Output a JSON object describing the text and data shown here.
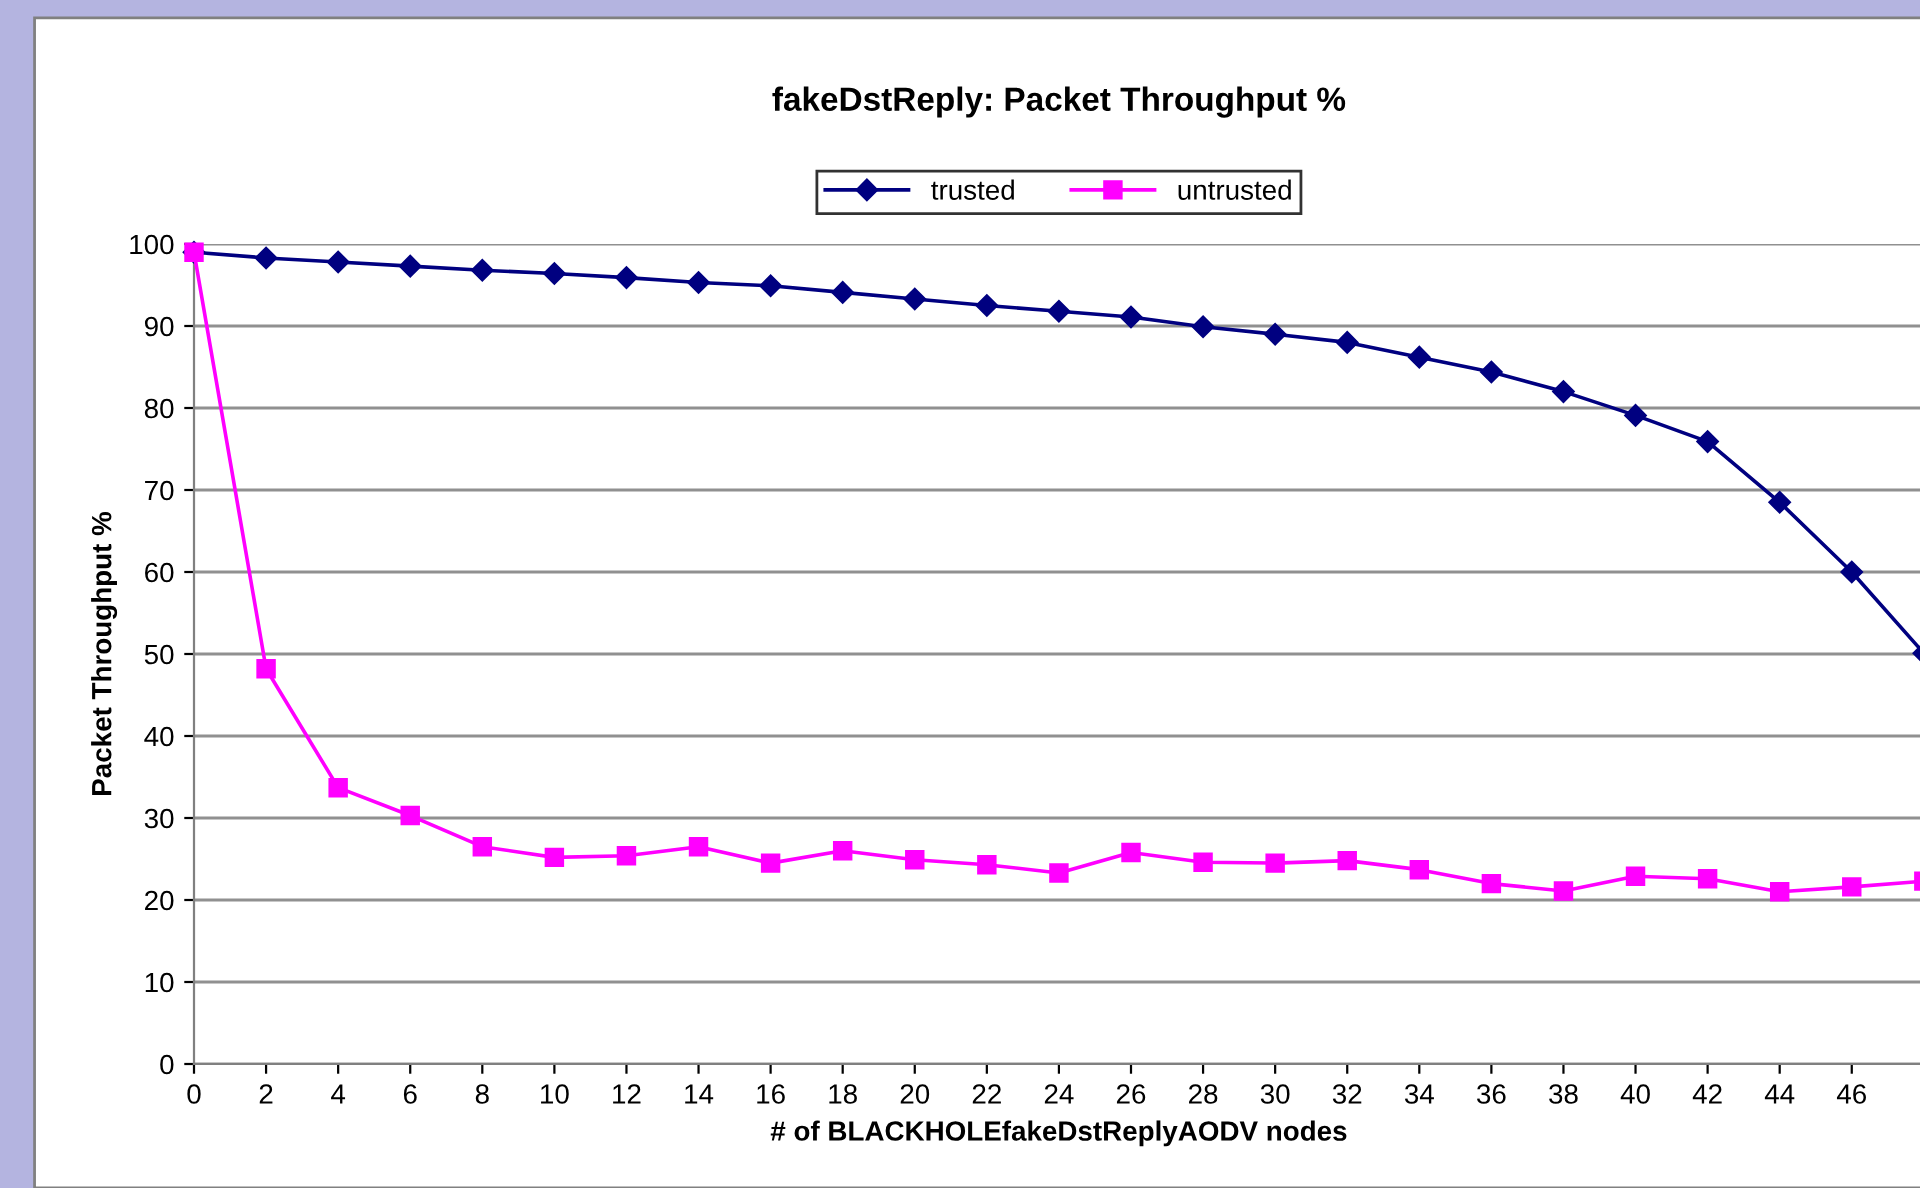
{
  "chart_data": {
    "type": "line",
    "title": "fakeDstReply: Packet Throughput %",
    "xlabel": "# of BLACKHOLEfakeDstReplyAODV nodes",
    "ylabel": "Packet Throughput %",
    "x": [
      0,
      2,
      4,
      6,
      8,
      10,
      12,
      14,
      16,
      18,
      20,
      22,
      24,
      26,
      28,
      30,
      32,
      34,
      36,
      38,
      40,
      42,
      44,
      46,
      48
    ],
    "series": [
      {
        "name": "trusted",
        "color": "#000080",
        "marker": "diamond",
        "values": [
          99,
          98.3,
          97.8,
          97.3,
          96.8,
          96.4,
          95.9,
          95.3,
          94.9,
          94.1,
          93.3,
          92.5,
          91.8,
          91.1,
          89.9,
          89.0,
          88.0,
          86.2,
          84.4,
          82.0,
          79.1,
          75.9,
          68.5,
          60.0,
          50.1
        ]
      },
      {
        "name": "untrusted",
        "color": "#ff00ff",
        "marker": "square",
        "values": [
          99,
          48.2,
          33.7,
          30.3,
          26.5,
          25.2,
          25.4,
          26.5,
          24.5,
          26.0,
          24.9,
          24.3,
          23.3,
          25.8,
          24.6,
          24.5,
          24.8,
          23.7,
          22.0,
          21.1,
          22.9,
          22.6,
          21.0,
          21.6,
          22.3
        ]
      }
    ],
    "xlim": [
      0,
      48
    ],
    "xticks": [
      0,
      2,
      4,
      6,
      8,
      10,
      12,
      14,
      16,
      18,
      20,
      22,
      24,
      26,
      28,
      30,
      32,
      34,
      36,
      38,
      40,
      42,
      44,
      46,
      {
        "value": 48,
        "label": null
      }
    ],
    "ylim": [
      0,
      100
    ],
    "yticks": [
      0,
      10,
      20,
      30,
      40,
      50,
      60,
      70,
      80,
      90,
      100
    ],
    "grid": "y",
    "legend": "top",
    "line_style": "solid"
  }
}
